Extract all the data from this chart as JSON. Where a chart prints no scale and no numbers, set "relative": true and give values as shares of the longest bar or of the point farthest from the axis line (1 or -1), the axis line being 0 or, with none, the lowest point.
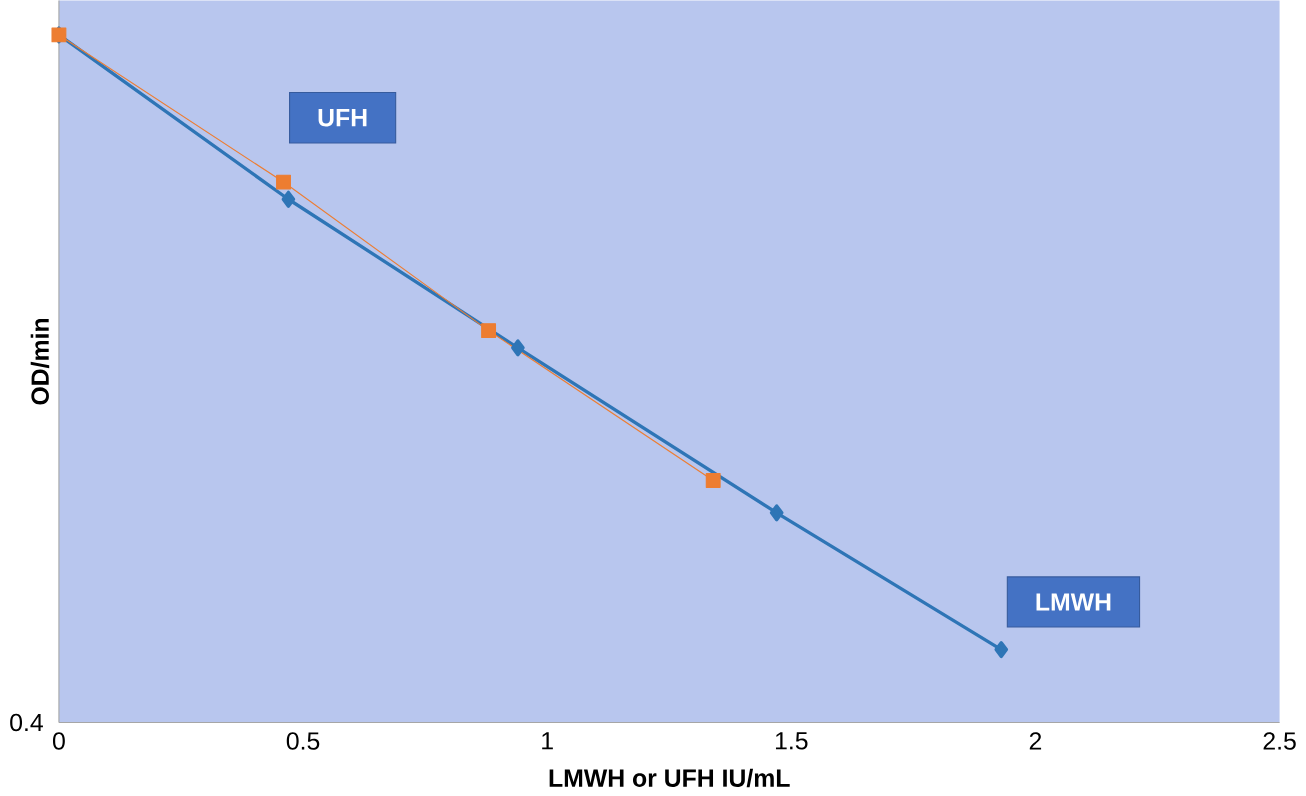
{
  "chart_data": {
    "type": "line",
    "relative": true,
    "xlabel": "LMWH or UFH   IU/mL",
    "ylabel": "OD/min",
    "xlim": [
      0,
      2.5
    ],
    "xticks": [
      0,
      0.5,
      1,
      1.5,
      2,
      2.5
    ],
    "annotations": [
      "0.4"
    ],
    "series": [
      {
        "name": "LMWH",
        "color": "#2e75b6",
        "marker": "diamond",
        "x": [
          0,
          0.47,
          0.94,
          1.47,
          1.93
        ],
        "values": [
          1,
          0.761,
          0.545,
          0.305,
          0.106
        ]
      },
      {
        "name": "UFH",
        "color": "#ed7d31",
        "marker": "square",
        "x": [
          0,
          0.46,
          0.88,
          1.34
        ],
        "values": [
          1,
          0.786,
          0.57,
          0.352
        ]
      }
    ]
  }
}
